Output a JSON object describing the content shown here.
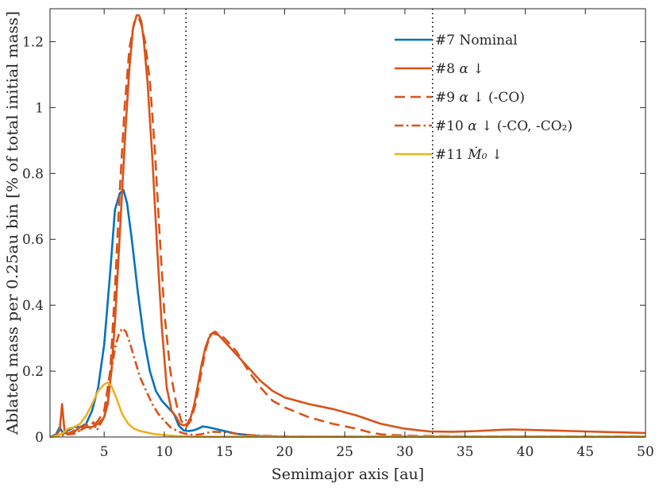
{
  "chart_data": {
    "type": "line",
    "title": "",
    "xlabel": "Semimajor axis [au]",
    "ylabel": "Ablated mass per 0.25au bin [% of total initial mass]",
    "xlim": [
      0.5,
      50
    ],
    "ylim": [
      0,
      1.3
    ],
    "x_ticks": [
      5,
      10,
      15,
      20,
      25,
      30,
      35,
      40,
      45,
      50
    ],
    "y_ticks": [
      0,
      0.2,
      0.4,
      0.6,
      0.8,
      1,
      1.2
    ],
    "y_tick_labels": [
      "0",
      "0.2",
      "0.4",
      "0.6",
      "0.8",
      "1",
      "1.2"
    ],
    "grid": false,
    "legend_position": "top-right",
    "vlines": [
      {
        "x": 11.8,
        "style": "dotted",
        "color": "#000000"
      },
      {
        "x": 32.3,
        "style": "dotted",
        "color": "#000000"
      }
    ],
    "series": [
      {
        "name": "#7 Nominal",
        "legend_text": "#7 Nominal",
        "legend_mu": "",
        "legend_rest": "",
        "color": "#0072BD",
        "dash": "solid",
        "x": [
          0.5,
          1.0,
          1.3,
          1.6,
          2.0,
          2.5,
          3.0,
          3.5,
          4.0,
          4.5,
          5.0,
          5.5,
          5.9,
          6.3,
          6.6,
          6.9,
          7.3,
          7.8,
          8.3,
          8.8,
          9.3,
          9.8,
          10.3,
          10.8,
          11.2,
          11.6,
          12.0,
          12.4,
          12.8,
          13.2,
          13.6,
          14.2,
          15.0,
          16.0,
          17.0,
          18.0,
          20.0,
          25.0,
          30.0,
          40.0,
          50.0
        ],
        "y": [
          0,
          0.008,
          0.03,
          0.01,
          0.02,
          0.03,
          0.03,
          0.04,
          0.08,
          0.15,
          0.28,
          0.5,
          0.69,
          0.74,
          0.75,
          0.71,
          0.6,
          0.44,
          0.3,
          0.2,
          0.14,
          0.11,
          0.09,
          0.07,
          0.035,
          0.02,
          0.018,
          0.02,
          0.025,
          0.032,
          0.03,
          0.025,
          0.018,
          0.01,
          0.006,
          0.003,
          0.001,
          0.001,
          0.001,
          0.001,
          0.001
        ]
      },
      {
        "name": "#8 α↓",
        "legend_text": "#8 ",
        "legend_mu": "α",
        "legend_rest": " ↓",
        "color": "#D95319",
        "dash": "solid",
        "x": [
          0.5,
          1.0,
          1.3,
          1.5,
          1.7,
          2.0,
          2.5,
          3.0,
          3.5,
          4.0,
          4.5,
          5.0,
          5.3,
          5.6,
          5.9,
          6.2,
          6.5,
          6.8,
          7.1,
          7.4,
          7.7,
          7.9,
          8.1,
          8.3,
          8.6,
          9.0,
          9.4,
          9.8,
          10.2,
          10.6,
          11.0,
          11.3,
          11.6,
          11.9,
          12.2,
          12.5,
          12.8,
          13.1,
          13.4,
          13.7,
          14.0,
          14.5,
          15.0,
          16.0,
          17.0,
          18.0,
          19.0,
          20.0,
          22.0,
          24.0,
          26.0,
          28.0,
          30.0,
          32.0,
          34.0,
          36.0,
          38.0,
          39.0,
          40.0,
          42.0,
          45.0,
          48.0,
          50.0
        ],
        "y": [
          0,
          0.005,
          0.02,
          0.1,
          0.02,
          0.01,
          0.015,
          0.03,
          0.03,
          0.03,
          0.04,
          0.06,
          0.1,
          0.2,
          0.35,
          0.55,
          0.75,
          0.95,
          1.12,
          1.24,
          1.28,
          1.28,
          1.26,
          1.2,
          1.08,
          0.85,
          0.58,
          0.33,
          0.15,
          0.08,
          0.06,
          0.04,
          0.035,
          0.04,
          0.06,
          0.1,
          0.16,
          0.22,
          0.27,
          0.3,
          0.315,
          0.31,
          0.29,
          0.25,
          0.21,
          0.17,
          0.14,
          0.12,
          0.1,
          0.085,
          0.065,
          0.04,
          0.025,
          0.017,
          0.016,
          0.018,
          0.022,
          0.023,
          0.022,
          0.02,
          0.017,
          0.014,
          0.012
        ]
      },
      {
        "name": "#9 α↓ (-CO)",
        "legend_text": "#9 ",
        "legend_mu": "α",
        "legend_rest": " ↓ (-CO)",
        "color": "#D95319",
        "dash": "dashed",
        "x": [
          0.5,
          1.0,
          1.5,
          2.0,
          2.5,
          3.0,
          3.5,
          4.0,
          4.5,
          5.0,
          5.5,
          5.9,
          6.3,
          6.7,
          7.1,
          7.5,
          7.9,
          8.1,
          8.4,
          8.8,
          9.2,
          9.6,
          10.0,
          10.5,
          11.0,
          11.4,
          11.8,
          12.2,
          12.6,
          13.0,
          13.4,
          13.8,
          14.2,
          15.0,
          16.0,
          17.0,
          18.0,
          19.0,
          20.0,
          22.0,
          24.0,
          26.0,
          27.0,
          28.0,
          30.0,
          35.0,
          40.0,
          50.0
        ],
        "y": [
          0,
          0.003,
          0.01,
          0.01,
          0.02,
          0.02,
          0.03,
          0.03,
          0.05,
          0.08,
          0.2,
          0.45,
          0.75,
          1.0,
          1.18,
          1.26,
          1.27,
          1.25,
          1.2,
          1.08,
          0.88,
          0.62,
          0.38,
          0.2,
          0.1,
          0.05,
          0.03,
          0.05,
          0.1,
          0.18,
          0.26,
          0.31,
          0.32,
          0.3,
          0.26,
          0.2,
          0.15,
          0.11,
          0.09,
          0.06,
          0.04,
          0.025,
          0.015,
          0.008,
          0.004,
          0.002,
          0.002,
          0.002
        ]
      },
      {
        "name": "#10 α↓ (-CO, -CO₂)",
        "legend_text": "#10 ",
        "legend_mu": "α",
        "legend_rest": " ↓ (-CO, -CO₂)",
        "color": "#D95319",
        "dash": "dashdot",
        "x": [
          0.5,
          1.0,
          1.5,
          2.0,
          2.5,
          3.0,
          3.5,
          3.8,
          4.1,
          4.4,
          4.7,
          5.0,
          5.3,
          5.6,
          5.9,
          6.2,
          6.5,
          6.8,
          7.1,
          7.5,
          8.0,
          8.5,
          9.0,
          9.5,
          10.0,
          10.5,
          11.0,
          11.5,
          12.0,
          12.5,
          13.0,
          13.5,
          14.0,
          15.0,
          16.0,
          17.0,
          18.0,
          20.0,
          25.0,
          30.0,
          40.0,
          50.0
        ],
        "y": [
          0,
          0.003,
          0.005,
          0.008,
          0.01,
          0.02,
          0.04,
          0.025,
          0.045,
          0.02,
          0.04,
          0.06,
          0.12,
          0.2,
          0.27,
          0.31,
          0.33,
          0.32,
          0.29,
          0.24,
          0.18,
          0.14,
          0.1,
          0.07,
          0.05,
          0.03,
          0.02,
          0.012,
          0.008,
          0.006,
          0.008,
          0.012,
          0.016,
          0.015,
          0.01,
          0.006,
          0.004,
          0.002,
          0.001,
          0.001,
          0.001,
          0.001
        ]
      },
      {
        "name": "#11 Ṁ₀↓",
        "legend_text": "#11 ",
        "legend_mu": "Ṁ₀",
        "legend_rest": " ↓",
        "color": "#EDB120",
        "dash": "solid",
        "x": [
          0.5,
          1.0,
          1.5,
          2.0,
          2.5,
          3.0,
          3.5,
          4.0,
          4.5,
          5.0,
          5.3,
          5.6,
          6.0,
          6.5,
          7.0,
          7.5,
          8.0,
          8.5,
          9.0,
          10.0,
          11.0,
          12.0,
          13.0,
          15.0,
          20.0,
          30.0,
          40.0,
          50.0
        ],
        "y": [
          0,
          0.003,
          0.01,
          0.025,
          0.03,
          0.04,
          0.065,
          0.1,
          0.14,
          0.16,
          0.165,
          0.155,
          0.12,
          0.07,
          0.04,
          0.025,
          0.018,
          0.014,
          0.01,
          0.006,
          0.003,
          0.002,
          0.001,
          0.001,
          0.001,
          0.001,
          0.001,
          0.001
        ]
      }
    ]
  }
}
